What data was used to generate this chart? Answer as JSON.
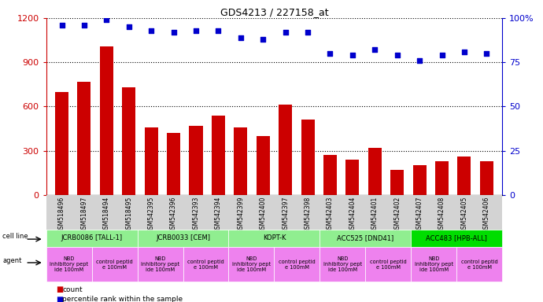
{
  "title": "GDS4213 / 227158_at",
  "samples": [
    "GSM518496",
    "GSM518497",
    "GSM518494",
    "GSM518495",
    "GSM542395",
    "GSM542396",
    "GSM542393",
    "GSM542394",
    "GSM542399",
    "GSM542400",
    "GSM542397",
    "GSM542398",
    "GSM542403",
    "GSM542404",
    "GSM542401",
    "GSM542402",
    "GSM542407",
    "GSM542408",
    "GSM542405",
    "GSM542406"
  ],
  "counts": [
    700,
    770,
    1010,
    730,
    460,
    420,
    470,
    540,
    460,
    400,
    610,
    510,
    270,
    240,
    320,
    170,
    200,
    230,
    260,
    230
  ],
  "percentiles": [
    96,
    96,
    99,
    95,
    93,
    92,
    93,
    93,
    89,
    88,
    92,
    92,
    80,
    79,
    82,
    79,
    76,
    79,
    81,
    80
  ],
  "bar_color": "#cc0000",
  "dot_color": "#0000cc",
  "ylim_left": [
    0,
    1200
  ],
  "ylim_right": [
    0,
    100
  ],
  "yticks_left": [
    0,
    300,
    600,
    900,
    1200
  ],
  "yticks_right": [
    0,
    25,
    50,
    75,
    100
  ],
  "cell_lines": [
    {
      "label": "JCRB0086 [TALL-1]",
      "start": 0,
      "end": 4,
      "color": "#90ee90"
    },
    {
      "label": "JCRB0033 [CEM]",
      "start": 4,
      "end": 8,
      "color": "#90ee90"
    },
    {
      "label": "KOPT-K",
      "start": 8,
      "end": 12,
      "color": "#90ee90"
    },
    {
      "label": "ACC525 [DND41]",
      "start": 12,
      "end": 16,
      "color": "#90ee90"
    },
    {
      "label": "ACC483 [HPB-ALL]",
      "start": 16,
      "end": 20,
      "color": "#00dd00"
    }
  ],
  "agents": [
    {
      "label": "NBD\ninhibitory pept\nide 100mM",
      "start": 0,
      "end": 2,
      "color": "#ee82ee"
    },
    {
      "label": "control peptid\ne 100mM",
      "start": 2,
      "end": 4,
      "color": "#ee82ee"
    },
    {
      "label": "NBD\ninhibitory pept\nide 100mM",
      "start": 4,
      "end": 6,
      "color": "#ee82ee"
    },
    {
      "label": "control peptid\ne 100mM",
      "start": 6,
      "end": 8,
      "color": "#ee82ee"
    },
    {
      "label": "NBD\ninhibitory pept\nide 100mM",
      "start": 8,
      "end": 10,
      "color": "#ee82ee"
    },
    {
      "label": "control peptid\ne 100mM",
      "start": 10,
      "end": 12,
      "color": "#ee82ee"
    },
    {
      "label": "NBD\ninhibitory pept\nide 100mM",
      "start": 12,
      "end": 14,
      "color": "#ee82ee"
    },
    {
      "label": "control peptid\ne 100mM",
      "start": 14,
      "end": 16,
      "color": "#ee82ee"
    },
    {
      "label": "NBD\ninhibitory pept\nide 100mM",
      "start": 16,
      "end": 18,
      "color": "#ee82ee"
    },
    {
      "label": "control peptid\ne 100mM",
      "start": 18,
      "end": 20,
      "color": "#ee82ee"
    }
  ],
  "bg_color": "#ffffff",
  "left_label_color": "#cc0000",
  "right_label_color": "#0000cc",
  "legend_count_color": "#cc0000",
  "legend_pct_color": "#0000cc",
  "xtick_bg": "#d3d3d3"
}
